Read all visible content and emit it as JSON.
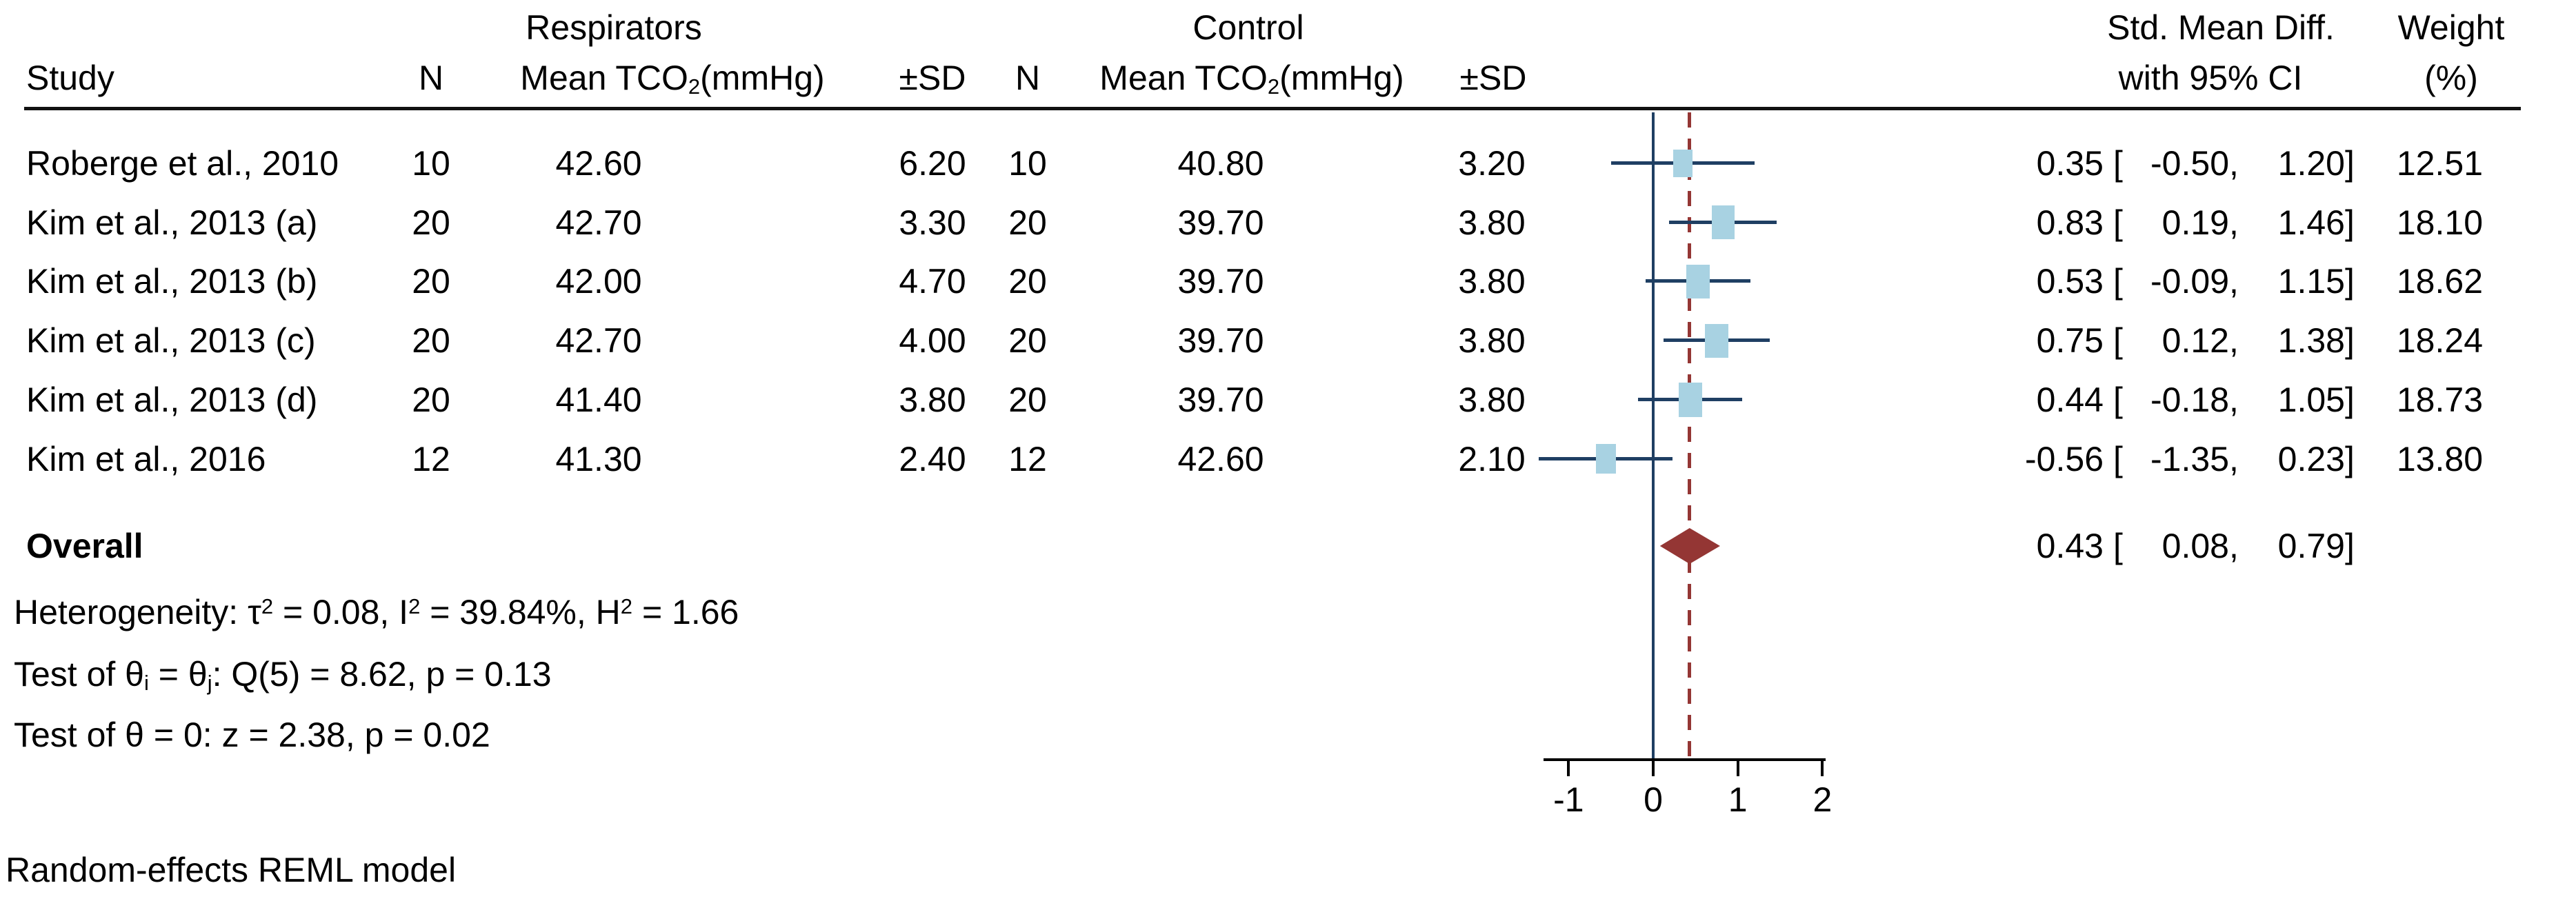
{
  "header": {
    "group_respirators": "Respirators",
    "group_control": "Control",
    "smd_line1": "Std. Mean Diff.",
    "smd_line2": "with 95% CI",
    "weight_line1": "Weight",
    "weight_line2": "(%)",
    "study": "Study",
    "n_respirators": "N",
    "n_control": "N",
    "sd_respirators": "±SD",
    "sd_control": "±SD",
    "mean_tco2_segments": [
      {
        "t": "Mean TCO"
      },
      {
        "t": "2",
        "sub": true
      },
      {
        "t": "(mmHg)"
      }
    ],
    "ci_open": "[",
    "ci_sep": ",",
    "ci_close": "]"
  },
  "rows": [
    {
      "study": "Roberge et al., 2010",
      "n1": "10",
      "mean1": "42.60",
      "sd1": "6.20",
      "n2": "10",
      "mean2": "40.80",
      "sd2": "3.20",
      "est": "0.35",
      "lo": "-0.50",
      "hi": "1.20",
      "weight": "12.51"
    },
    {
      "study": "Kim et al., 2013 (a)",
      "n1": "20",
      "mean1": "42.70",
      "sd1": "3.30",
      "n2": "20",
      "mean2": "39.70",
      "sd2": "3.80",
      "est": "0.83",
      "lo": "0.19",
      "hi": "1.46",
      "weight": "18.10"
    },
    {
      "study": "Kim et al., 2013 (b)",
      "n1": "20",
      "mean1": "42.00",
      "sd1": "4.70",
      "n2": "20",
      "mean2": "39.70",
      "sd2": "3.80",
      "est": "0.53",
      "lo": "-0.09",
      "hi": "1.15",
      "weight": "18.62"
    },
    {
      "study": "Kim et al., 2013 (c)",
      "n1": "20",
      "mean1": "42.70",
      "sd1": "4.00",
      "n2": "20",
      "mean2": "39.70",
      "sd2": "3.80",
      "est": "0.75",
      "lo": "0.12",
      "hi": "1.38",
      "weight": "18.24"
    },
    {
      "study": "Kim et al., 2013 (d)",
      "n1": "20",
      "mean1": "41.40",
      "sd1": "3.80",
      "n2": "20",
      "mean2": "39.70",
      "sd2": "3.80",
      "est": "0.44",
      "lo": "-0.18",
      "hi": "1.05",
      "weight": "18.73"
    },
    {
      "study": "Kim et al., 2016",
      "n1": "12",
      "mean1": "41.30",
      "sd1": "2.40",
      "n2": "12",
      "mean2": "42.60",
      "sd2": "2.10",
      "est": "-0.56",
      "lo": "-1.35",
      "hi": "0.23",
      "weight": "13.80"
    }
  ],
  "overall": {
    "label": "Overall",
    "est": "0.43",
    "lo": "0.08",
    "hi": "0.79"
  },
  "stats": [
    {
      "segments": [
        {
          "t": "Heterogeneity: τ"
        },
        {
          "t": "2",
          "sup": true
        },
        {
          "t": " = 0.08, I"
        },
        {
          "t": "2",
          "sup": true
        },
        {
          "t": " = 39.84%, H"
        },
        {
          "t": "2",
          "sup": true
        },
        {
          "t": " = 1.66"
        }
      ]
    },
    {
      "segments": [
        {
          "t": "Test of θ"
        },
        {
          "t": "i",
          "sub": true
        },
        {
          "t": " = θ"
        },
        {
          "t": "j",
          "sub": true
        },
        {
          "t": ": Q(5) = 8.62, p = 0.13"
        }
      ]
    },
    {
      "segments": [
        {
          "t": "Test of θ = 0: z = 2.38, p = 0.02"
        }
      ]
    }
  ],
  "axis": {
    "ticks": [
      "-1",
      "0",
      "1",
      "2"
    ]
  },
  "footnote": "Random-effects REML model",
  "colors": {
    "marker_square": "#a8d2e2",
    "ci_line": "#1f3f63",
    "zero_line": "#1f3f63",
    "diamond": "#943634",
    "overall_dashed_line": "#943634",
    "axis": "#000000",
    "text": "#000000"
  },
  "chart_data": {
    "type": "scatter",
    "subtype": "forest-plot-meta-analysis",
    "title": "",
    "xlabel": "",
    "ylabel": "",
    "x_ticks": [
      -1,
      0,
      1,
      2
    ],
    "xlim": [
      -1.4,
      2.1
    ],
    "grid": false,
    "legend_position": "none",
    "reference_line_x": 0,
    "overall_estimate_line_x": 0.43,
    "effect_measure": "Std. Mean Diff. with 95% CI",
    "outcome": "Mean TCO2 (mmHg)",
    "groups": [
      "Respirators",
      "Control"
    ],
    "studies": [
      {
        "study": "Roberge et al., 2010",
        "respirators": {
          "n": 10,
          "mean": 42.6,
          "sd": 6.2
        },
        "control": {
          "n": 10,
          "mean": 40.8,
          "sd": 3.2
        },
        "smd": 0.35,
        "ci_low": -0.5,
        "ci_high": 1.2,
        "weight_pct": 12.51
      },
      {
        "study": "Kim et al., 2013 (a)",
        "respirators": {
          "n": 20,
          "mean": 42.7,
          "sd": 3.3
        },
        "control": {
          "n": 20,
          "mean": 39.7,
          "sd": 3.8
        },
        "smd": 0.83,
        "ci_low": 0.19,
        "ci_high": 1.46,
        "weight_pct": 18.1
      },
      {
        "study": "Kim et al., 2013 (b)",
        "respirators": {
          "n": 20,
          "mean": 42.0,
          "sd": 4.7
        },
        "control": {
          "n": 20,
          "mean": 39.7,
          "sd": 3.8
        },
        "smd": 0.53,
        "ci_low": -0.09,
        "ci_high": 1.15,
        "weight_pct": 18.62
      },
      {
        "study": "Kim et al., 2013 (c)",
        "respirators": {
          "n": 20,
          "mean": 42.7,
          "sd": 4.0
        },
        "control": {
          "n": 20,
          "mean": 39.7,
          "sd": 3.8
        },
        "smd": 0.75,
        "ci_low": 0.12,
        "ci_high": 1.38,
        "weight_pct": 18.24
      },
      {
        "study": "Kim et al., 2013 (d)",
        "respirators": {
          "n": 20,
          "mean": 41.4,
          "sd": 3.8
        },
        "control": {
          "n": 20,
          "mean": 39.7,
          "sd": 3.8
        },
        "smd": 0.44,
        "ci_low": -0.18,
        "ci_high": 1.05,
        "weight_pct": 18.73
      },
      {
        "study": "Kim et al., 2016",
        "respirators": {
          "n": 12,
          "mean": 41.3,
          "sd": 2.4
        },
        "control": {
          "n": 12,
          "mean": 42.6,
          "sd": 2.1
        },
        "smd": -0.56,
        "ci_low": -1.35,
        "ci_high": 0.23,
        "weight_pct": 13.8
      }
    ],
    "overall": {
      "smd": 0.43,
      "ci_low": 0.08,
      "ci_high": 0.79
    },
    "heterogeneity": {
      "tau2": 0.08,
      "I2_pct": 39.84,
      "H2": 1.66
    },
    "test_of_homogeneity": {
      "Q_df": 5,
      "Q": 8.62,
      "p": 0.13
    },
    "test_of_overall_effect": {
      "z": 2.38,
      "p": 0.02
    },
    "model": "Random-effects REML model"
  }
}
